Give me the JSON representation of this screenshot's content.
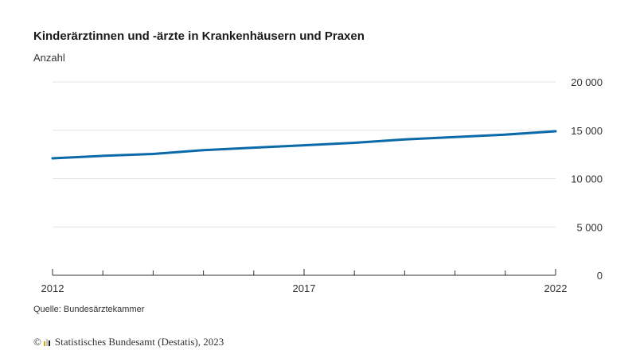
{
  "chart_data": {
    "type": "line",
    "title": "Kinderärztinnen und -ärzte in Krankenhäusern und Praxen",
    "ylabel": "Anzahl",
    "xlabel": "",
    "x": [
      2012,
      2013,
      2014,
      2015,
      2016,
      2017,
      2018,
      2019,
      2020,
      2021,
      2022
    ],
    "series": [
      {
        "name": "Kinderärztinnen und -ärzte",
        "color": "#0a6aa9",
        "values": [
          12100,
          12350,
          12550,
          12950,
          13200,
          13450,
          13700,
          14050,
          14300,
          14550,
          14900
        ]
      }
    ],
    "xlim": [
      2012,
      2022
    ],
    "ylim": [
      0,
      20000
    ],
    "x_tick_labels": [
      "2012",
      "2017",
      "2022"
    ],
    "y_tick_labels": [
      "0",
      "5 000",
      "10 000",
      "15 000",
      "20 000"
    ],
    "grid": true,
    "y_axis_position": "right"
  },
  "source": "Quelle: Bundesärztekammer",
  "copyright": {
    "symbol": "©",
    "text": "Statistisches Bundesamt (Destatis), 2023"
  },
  "colors": {
    "line": "#0a6aa9",
    "grid": "#e3e3e3",
    "axis": "#333333",
    "logo": [
      "#e8a200",
      "#c4c4c4",
      "#1a1a1a"
    ]
  }
}
